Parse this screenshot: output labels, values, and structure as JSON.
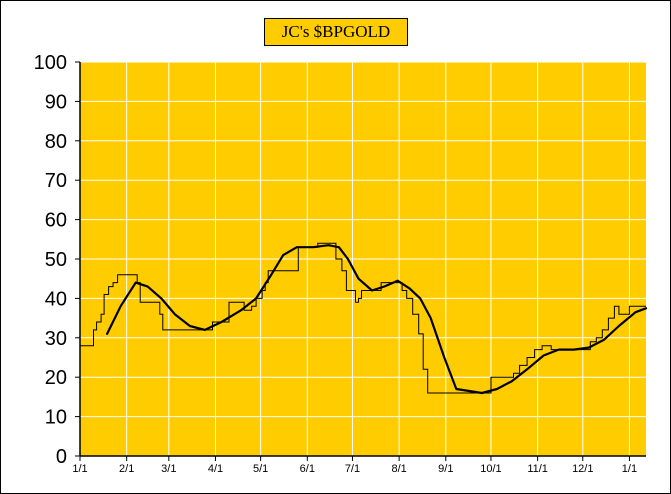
{
  "chart_data": {
    "type": "line",
    "title": "JC's $BPGOLD",
    "xlabel": "",
    "ylabel": "",
    "ylim": [
      0,
      100
    ],
    "xlim": [
      "2010-01-01",
      "2011-01-12"
    ],
    "y_ticks": [
      0,
      10,
      20,
      30,
      40,
      50,
      60,
      70,
      80,
      90,
      100
    ],
    "x_ticks": [
      {
        "date": "2010-01-01",
        "label": "1/1"
      },
      {
        "date": "2010-02-01",
        "label": "2/1"
      },
      {
        "date": "2010-03-01",
        "label": "3/1"
      },
      {
        "date": "2010-04-01",
        "label": "4/1"
      },
      {
        "date": "2010-05-01",
        "label": "5/1"
      },
      {
        "date": "2010-06-01",
        "label": "6/1"
      },
      {
        "date": "2010-07-01",
        "label": "7/1"
      },
      {
        "date": "2010-08-01",
        "label": "8/1"
      },
      {
        "date": "2010-09-01",
        "label": "9/1"
      },
      {
        "date": "2010-10-01",
        "label": "10/1"
      },
      {
        "date": "2010-11-01",
        "label": "11/1"
      },
      {
        "date": "2010-12-01",
        "label": "12/1"
      },
      {
        "date": "2011-01-01",
        "label": "1/1"
      }
    ],
    "grid": true,
    "legend": "none",
    "colors": {
      "plot_background": "#ffcc00",
      "grid": "#ffffff",
      "line": "#000000",
      "title_background": "#ffcc00"
    },
    "series": [
      {
        "style": "thin-step",
        "x": [
          "2010-01-01",
          "2010-01-10",
          "2010-01-12",
          "2010-01-15",
          "2010-01-17",
          "2010-01-20",
          "2010-01-23",
          "2010-01-26",
          "2010-02-08",
          "2010-02-10",
          "2010-02-20",
          "2010-02-23",
          "2010-02-25",
          "2010-03-25",
          "2010-03-30",
          "2010-04-10",
          "2010-04-15",
          "2010-04-20",
          "2010-04-25",
          "2010-04-28",
          "2010-05-02",
          "2010-05-04",
          "2010-05-06",
          "2010-05-26",
          "2010-05-28",
          "2010-06-08",
          "2010-06-11",
          "2010-06-20",
          "2010-06-24",
          "2010-06-27",
          "2010-07-03",
          "2010-07-05",
          "2010-07-07",
          "2010-07-20",
          "2010-07-25",
          "2010-08-03",
          "2010-08-06",
          "2010-08-10",
          "2010-08-14",
          "2010-08-17",
          "2010-08-20",
          "2010-09-25",
          "2010-10-01",
          "2010-10-05",
          "2010-10-12",
          "2010-10-16",
          "2010-10-20",
          "2010-10-25",
          "2010-10-30",
          "2010-11-04",
          "2010-11-10",
          "2010-11-25",
          "2010-11-30",
          "2010-12-06",
          "2010-12-10",
          "2010-12-14",
          "2010-12-18",
          "2010-12-22",
          "2010-12-25",
          "2011-01-01",
          "2011-01-12"
        ],
        "y": [
          28,
          32,
          34,
          36,
          41,
          43,
          44,
          46,
          44,
          39,
          39,
          36,
          32,
          32,
          34,
          39,
          39,
          37,
          38,
          40,
          42,
          44,
          47,
          53,
          53,
          54,
          54,
          50,
          47,
          42,
          39,
          40,
          42,
          44,
          44,
          42,
          40,
          36,
          31,
          22,
          16,
          16,
          20,
          20,
          20,
          21,
          23,
          25,
          27,
          28,
          27,
          27,
          27,
          29,
          30,
          32,
          35,
          38,
          36,
          38,
          38
        ]
      },
      {
        "style": "thick-smooth",
        "x": [
          "2010-01-19",
          "2010-01-28",
          "2010-02-07",
          "2010-02-15",
          "2010-02-24",
          "2010-03-05",
          "2010-03-15",
          "2010-03-25",
          "2010-04-05",
          "2010-04-18",
          "2010-04-28",
          "2010-05-08",
          "2010-05-16",
          "2010-05-25",
          "2010-06-05",
          "2010-06-15",
          "2010-06-22",
          "2010-06-28",
          "2010-07-05",
          "2010-07-14",
          "2010-07-22",
          "2010-07-31",
          "2010-08-08",
          "2010-08-15",
          "2010-08-22",
          "2010-08-31",
          "2010-09-08",
          "2010-09-25",
          "2010-10-05",
          "2010-10-15",
          "2010-10-25",
          "2010-11-05",
          "2010-11-15",
          "2010-11-25",
          "2010-12-05",
          "2010-12-15",
          "2010-12-25",
          "2011-01-05",
          "2011-01-12"
        ],
        "y": [
          31,
          38,
          44,
          43,
          40,
          36,
          33,
          32,
          34,
          37,
          40,
          46,
          51,
          53,
          53,
          53.5,
          53,
          50,
          45,
          42,
          43,
          44.5,
          42.5,
          40,
          35,
          25,
          17,
          16,
          17,
          19,
          22,
          25.5,
          27,
          27,
          27.5,
          29.5,
          33,
          36.5,
          37.5
        ]
      }
    ]
  }
}
